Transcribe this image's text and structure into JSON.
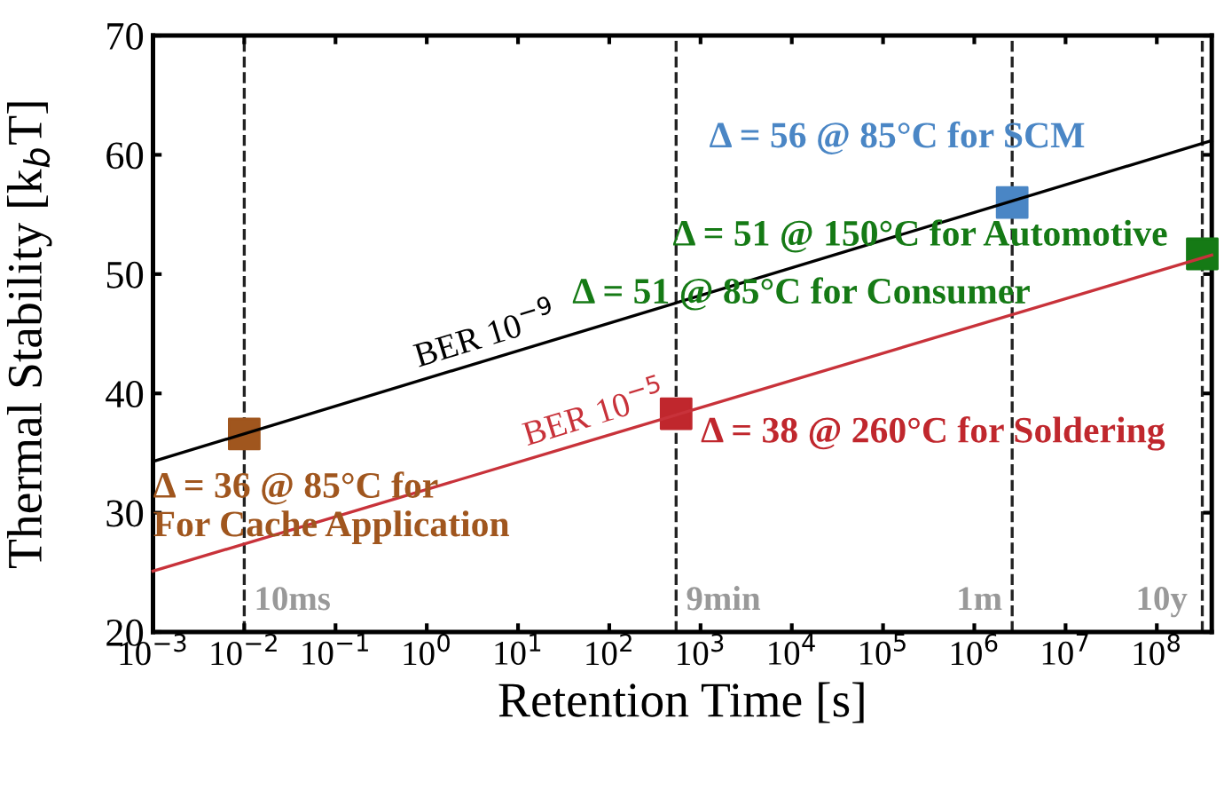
{
  "chart_data": {
    "type": "line",
    "xlabel": "Retention Time [s]",
    "ylabel": "Thermal Stability [k$_{b}$T]",
    "log": "x",
    "xlim": [
      0.001,
      400000000
    ],
    "ylim": [
      20,
      70
    ],
    "xticks": [
      {
        "value": 0.001,
        "label": "10$^{−3}$"
      },
      {
        "value": 0.01,
        "label": "10$^{−2}$"
      },
      {
        "value": 0.1,
        "label": "10$^{−1}$"
      },
      {
        "value": 1,
        "label": "10$^{0}$"
      },
      {
        "value": 10,
        "label": "10$^{1}$"
      },
      {
        "value": 100,
        "label": "10$^{2}$"
      },
      {
        "value": 1000,
        "label": "10$^{3}$"
      },
      {
        "value": 10000,
        "label": "10$^{4}$"
      },
      {
        "value": 100000,
        "label": "10$^{5}$"
      },
      {
        "value": 1000000,
        "label": "10$^{6}$"
      },
      {
        "value": 10000000,
        "label": "10$^{7}$"
      },
      {
        "value": 100000000,
        "label": "10$^{8}$"
      }
    ],
    "yticks": [
      20,
      30,
      40,
      50,
      60,
      70
    ],
    "grid": false,
    "series": [
      {
        "color": "#000000",
        "x": [
          0.001,
          400000000
        ],
        "values": [
          34.3,
          61.2
        ]
      },
      {
        "color": "#c8323a",
        "x": [
          0.001,
          400000000
        ],
        "values": [
          25.1,
          51.6
        ]
      },
      {
        "type": "scatter",
        "marker": "square",
        "x": [
          0.01,
          540,
          2600000,
          315000000
        ],
        "values": [
          36.6,
          38.3,
          56,
          51.7
        ],
        "colors": [
          "#a0561e",
          "#c0272d",
          "#4a86c5",
          "#157a15"
        ]
      }
    ],
    "ref_lines": [
      {
        "axis": "x",
        "value": 0.01,
        "label": "10ms",
        "color": "#222222",
        "line_style": "dashed"
      },
      {
        "axis": "x",
        "value": 540,
        "label": "9min",
        "color": "#222222",
        "line_style": "dashed"
      },
      {
        "axis": "x",
        "value": 2600000,
        "label": "1m",
        "color": "#222222",
        "line_style": "dashed"
      },
      {
        "axis": "x",
        "value": 315000000,
        "label": "10y",
        "color": "#222222",
        "line_style": "dashed"
      }
    ],
    "annotations": [
      {
        "text": "Δ = 36 @ 85°C for\nFor Cache Application",
        "x": 0.01,
        "y": 36.6
      },
      {
        "text": "Δ = 38 @ 260°C for Soldering",
        "x": 540,
        "y": 38.3
      },
      {
        "text": "Δ = 56 @ 85°C for SCM",
        "x": 2600000,
        "y": 56
      },
      {
        "text": "Δ = 51 @ 150°C for Automotive",
        "x": 315000000,
        "y": 51.7
      },
      "Δ = 51 @ 85°C for Consumer",
      {
        "text": "BER 10$^{−9}$",
        "x": 4.5,
        "y": 42.8
      },
      {
        "text": "BER 10$^{−5}$",
        "x": 70,
        "y": 36.2
      }
    ]
  }
}
